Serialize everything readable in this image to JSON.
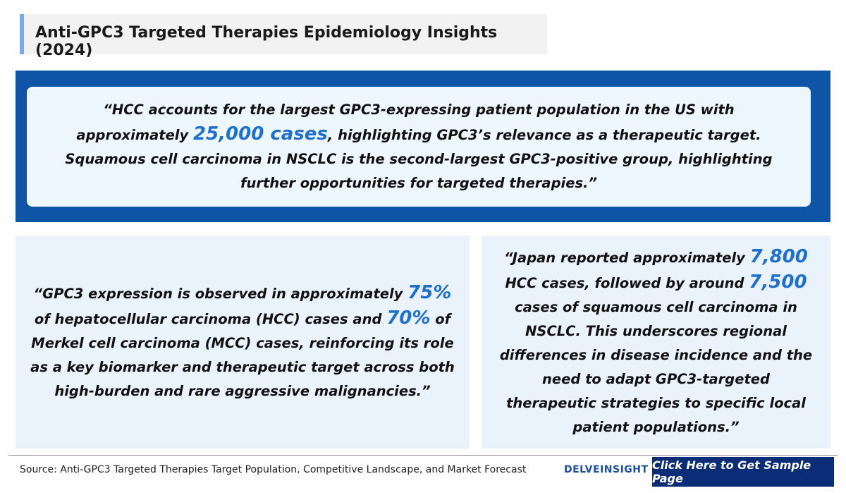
{
  "header": {
    "title": "Anti-GPC3 Targeted Therapies Epidemiology Insights (2024)"
  },
  "main_quote": {
    "parts": [
      {
        "text": "“HCC accounts for the largest GPC3-expressing patient population in the US with approximately ",
        "emphasis": false
      },
      {
        "text": "25,000 cases",
        "emphasis": true
      },
      {
        "text": ", highlighting GPC3’s relevance as a therapeutic target. Squamous cell carcinoma in NSCLC is the second-largest GPC3-positive group, highlighting further opportunities for targeted therapies.”",
        "emphasis": false
      }
    ]
  },
  "cards": [
    {
      "parts": [
        {
          "text": "“GPC3 expression is observed in approximately ",
          "emphasis": false
        },
        {
          "text": "75%",
          "emphasis": true
        },
        {
          "text": " of hepatocellular carcinoma (HCC) cases and ",
          "emphasis": false
        },
        {
          "text": "70%",
          "emphasis": true
        },
        {
          "text": " of Merkel cell carcinoma (MCC) cases, reinforcing its role as a key biomarker and therapeutic target across both high-burden and rare aggressive malignancies.”",
          "emphasis": false
        }
      ]
    },
    {
      "parts": [
        {
          "text": "“Japan reported approximately ",
          "emphasis": false
        },
        {
          "text": "7,800",
          "emphasis": true
        },
        {
          "text": " HCC cases, followed by around ",
          "emphasis": false
        },
        {
          "text": "7,500",
          "emphasis": true
        },
        {
          "text": " cases of squamous cell carcinoma in NSCLC. This underscores regional differences in disease incidence and the need to adapt GPC3-targeted therapeutic strategies to specific local patient populations.”",
          "emphasis": false
        }
      ]
    }
  ],
  "footer": {
    "source": "Source: Anti-GPC3 Targeted Therapies Target Population, Competitive Landscape, and Market Forecast",
    "logo": "DELVEINSIGHT",
    "button": "Click Here to Get Sample Page"
  }
}
